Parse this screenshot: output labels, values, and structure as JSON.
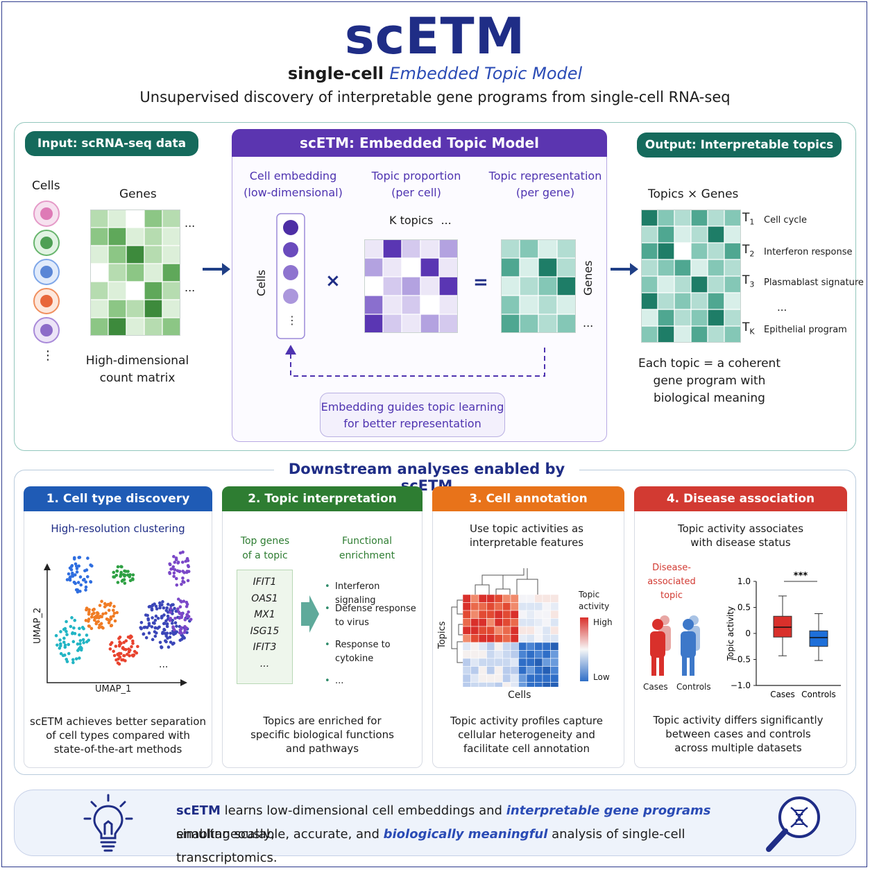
{
  "header": {
    "title": "scETM",
    "subtitle_plain": "single-cell",
    "subtitle_em": "Embedded Topic Model",
    "tagline": "Unsupervised discovery of interpretable gene programs from single-cell RNA-seq"
  },
  "input": {
    "pill": "Input: scRNA-seq data",
    "cells_label": "Cells",
    "genes_label": "Genes",
    "ellipsis": "...",
    "vdots": "⋮",
    "caption_line1": "High-dimensional",
    "caption_line2": "count matrix"
  },
  "model": {
    "pill": "scETM: Embedded Topic Model",
    "col1_line1": "Cell embedding",
    "col1_line2": "(low-dimensional)",
    "col2_line1": "Topic proportion",
    "col2_line2": "(per cell)",
    "col3_line1": "Topic representation",
    "col3_line2": "(per gene)",
    "cells_axis": "Cells",
    "genes_axis": "Genes",
    "k_topics": "K topics",
    "ellipsis": "...",
    "times": "×",
    "equals": "=",
    "feedback_line1": "Embedding guides topic learning",
    "feedback_line2": "for better representation"
  },
  "output": {
    "pill": "Output: Interpretable topics",
    "matrix_label": "Topics × Genes",
    "topics": [
      {
        "sym": "T",
        "sub": "1",
        "name": "Cell cycle"
      },
      {
        "sym": "T",
        "sub": "2",
        "name": "Interferon response"
      },
      {
        "sym": "T",
        "sub": "3",
        "name": "Plasmablast signature"
      },
      {
        "sym": "T",
        "sub": "K",
        "name": "Epithelial program"
      }
    ],
    "dots": "...",
    "caption_line1": "Each topic = a coherent",
    "caption_line2": "gene program with",
    "caption_line3": "biological meaning"
  },
  "downstream": {
    "heading": "Downstream analyses enabled by scETM",
    "cards": [
      {
        "title": "1. Cell type discovery",
        "color": "#1f5bb5",
        "subtitle": "High-resolution clustering",
        "xlabel": "UMAP_1",
        "ylabel": "UMAP_2",
        "dots": "...",
        "caption": [
          "scETM achieves better separation",
          "of cell types compared with",
          "state-of-the-art methods"
        ]
      },
      {
        "title": "2. Topic interpretation",
        "color": "#2e7d32",
        "genes_head": [
          "Top genes",
          "of a topic"
        ],
        "genes": [
          "IFIT1",
          "OAS1",
          "MX1",
          "ISG15",
          "IFIT3",
          "..."
        ],
        "func_head": [
          "Functional",
          "enrichment"
        ],
        "functions": [
          [
            "Interferon signaling"
          ],
          [
            "Defense response",
            "to virus"
          ],
          [
            "Response to",
            "cytokine"
          ],
          [
            "..."
          ]
        ],
        "caption": [
          "Topics are enriched for",
          "specific biological functions",
          "and pathways"
        ]
      },
      {
        "title": "3. Cell annotation",
        "color": "#e8731a",
        "subtitle": [
          "Use topic activities as",
          "interpretable features"
        ],
        "ylabel": "Topics",
        "xlabel": "Cells",
        "legend_title": [
          "Topic",
          "activity"
        ],
        "legend_high": "High",
        "legend_low": "Low",
        "caption": [
          "Topic activity profiles capture",
          "cellular heterogeneity and",
          "facilitate cell annotation"
        ]
      },
      {
        "title": "4. Disease association",
        "color": "#d23a32",
        "subtitle": [
          "Topic activity associates",
          "with disease status"
        ],
        "disease_label": [
          "Disease-",
          "associated",
          "topic"
        ],
        "people_cases": "Cases",
        "people_controls": "Controls",
        "ylabel": "Topic activity",
        "yticks": [
          "1.0",
          "0.5",
          "0",
          "−0.5",
          "−1.0"
        ],
        "groups": [
          "Cases",
          "Controls"
        ],
        "signif": "***",
        "caption": [
          "Topic activity differs significantly",
          "between cases and controls",
          "across multiple datasets"
        ]
      }
    ]
  },
  "chart_data": {
    "type": "box",
    "categories": [
      "Cases",
      "Controls"
    ],
    "ylabel": "Topic activity",
    "ylim": [
      -1.0,
      1.0
    ],
    "yticks": [
      1.0,
      0.5,
      0,
      -0.5,
      -1.0
    ],
    "boxes": [
      {
        "name": "Cases",
        "color": "#d9302b",
        "whisker_low": -0.43,
        "q1": -0.07,
        "median": 0.12,
        "q3": 0.33,
        "whisker_high": 0.72
      },
      {
        "name": "Controls",
        "color": "#1e6fd9",
        "whisker_low": -0.52,
        "q1": -0.25,
        "median": -0.08,
        "q3": 0.05,
        "whisker_high": 0.38
      }
    ],
    "annotation": "***"
  },
  "footer": {
    "line1_a": "scETM",
    "line1_b": " learns low-dimensional cell embeddings and ",
    "line1_c": "interpretable gene programs",
    "line1_d": " simultaneously,",
    "line2_a": "enabling scalable, accurate, and ",
    "line2_b": "biologically meaningful",
    "line2_c": "  analysis of single-cell transcriptomics."
  },
  "colors": {
    "navy": "#1f2d86",
    "teal": "#156a5c",
    "purple": "#5b35b0",
    "green": "#2e7d32",
    "orange": "#e8731a",
    "red": "#d23a32",
    "blue": "#1f5bb5"
  },
  "icons": [
    "lightbulb-icon",
    "dna-magnifier-icon",
    "arrow-right-icon",
    "cell-icon",
    "person-icon"
  ]
}
